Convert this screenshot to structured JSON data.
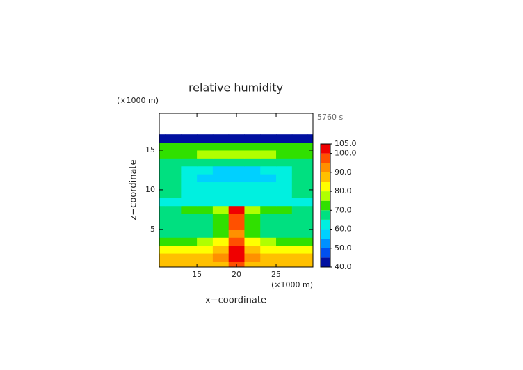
{
  "chart_data": {
    "type": "contour",
    "title": "relative humidity",
    "subtitle": "5760 s",
    "x_label": "x−coordinate",
    "y_label": "z−coordinate",
    "x_unit": "(×1000 m)",
    "y_unit": "(×1000 m)",
    "xlim": [
      10.25,
      29.65
    ],
    "ylim": [
      0.25,
      19.65
    ],
    "xticks": [
      15,
      20,
      25
    ],
    "yticks": [
      5,
      10,
      15
    ],
    "x": [
      10,
      12,
      14,
      16,
      18,
      20,
      22,
      24,
      26,
      28,
      30
    ],
    "z": [
      0.5,
      1.5,
      2.5,
      3.5,
      4.5,
      5.5,
      6.5,
      7.5,
      8.5,
      9.5,
      10.5,
      11.5,
      12.5,
      13.5,
      14.5,
      15.5,
      16.5
    ],
    "values": [
      [
        86,
        86,
        86,
        86,
        88,
        95,
        88,
        86,
        86,
        86,
        86
      ],
      [
        88,
        88,
        88,
        88,
        90,
        100,
        90,
        88,
        88,
        88,
        88
      ],
      [
        82,
        82,
        82,
        83,
        88,
        102,
        88,
        83,
        82,
        82,
        82
      ],
      [
        72,
        72,
        73,
        75,
        80,
        96,
        80,
        75,
        73,
        72,
        72
      ],
      [
        66,
        66,
        66,
        67,
        72,
        92,
        72,
        67,
        66,
        66,
        66
      ],
      [
        68,
        68,
        68,
        68,
        70,
        96,
        70,
        68,
        68,
        68,
        68
      ],
      [
        65,
        65,
        65,
        66,
        70,
        97,
        70,
        66,
        65,
        65,
        65
      ],
      [
        68,
        68,
        70,
        72,
        75,
        103,
        75,
        72,
        70,
        68,
        68
      ],
      [
        62,
        62,
        62,
        62,
        62,
        62,
        62,
        62,
        62,
        62,
        62
      ],
      [
        65,
        65,
        64,
        63,
        63,
        63,
        63,
        63,
        64,
        65,
        65
      ],
      [
        66,
        66,
        62,
        60,
        60,
        60,
        60,
        60,
        62,
        66,
        66
      ],
      [
        68,
        68,
        60,
        57,
        57,
        57,
        57,
        57,
        60,
        68,
        68
      ],
      [
        66,
        66,
        63,
        60,
        58,
        58,
        58,
        60,
        63,
        66,
        66
      ],
      [
        67,
        67,
        66,
        65,
        65,
        65,
        65,
        65,
        66,
        67,
        67
      ],
      [
        70,
        70,
        73,
        76,
        77,
        77,
        77,
        76,
        73,
        70,
        70
      ],
      [
        72,
        72,
        72,
        72,
        72,
        72,
        72,
        72,
        72,
        72,
        72
      ],
      [
        42,
        42,
        42,
        42,
        42,
        42,
        42,
        42,
        42,
        42,
        42
      ]
    ],
    "levels": [
      40,
      45,
      50,
      55,
      60,
      65,
      70,
      75,
      80,
      85,
      90,
      95,
      100,
      105
    ],
    "colors": [
      "#0010a0",
      "#0050f0",
      "#0090ff",
      "#00d0ff",
      "#00f0e0",
      "#00e080",
      "#30e000",
      "#b0ff00",
      "#ffff00",
      "#ffc000",
      "#ff9000",
      "#ff5000",
      "#f00000",
      "#f09090"
    ],
    "colorbar_ticks": [
      {
        "value": 40,
        "label": "40.0"
      },
      {
        "value": 50,
        "label": "50.0"
      },
      {
        "value": 60,
        "label": "60.0"
      },
      {
        "value": 70,
        "label": "70.0"
      },
      {
        "value": 80,
        "label": "80.0"
      },
      {
        "value": 90,
        "label": "90.0"
      },
      {
        "value": 100,
        "label": "100.0"
      },
      {
        "value": 105,
        "label": "105.0"
      }
    ]
  }
}
